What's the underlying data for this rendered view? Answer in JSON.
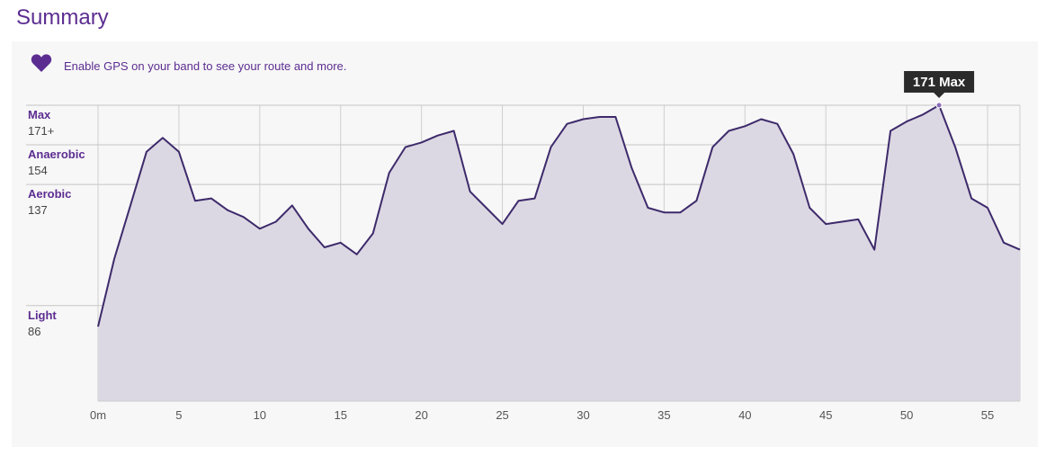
{
  "title": "Summary",
  "gps": {
    "icon": "heart-icon",
    "text": "Enable GPS on your band to see your route and more."
  },
  "colors": {
    "accent": "#5c2d91",
    "line": "#3d2a6b",
    "fill": "#dcd8e3",
    "tooltip_bg": "#2b2b2b"
  },
  "chart_data": {
    "type": "area",
    "x": [
      0,
      1,
      2,
      3,
      4,
      5,
      6,
      7,
      8,
      9,
      10,
      11,
      12,
      13,
      14,
      15,
      16,
      17,
      18,
      19,
      20,
      21,
      22,
      23,
      24,
      25,
      26,
      27,
      28,
      29,
      30,
      31,
      32,
      33,
      34,
      35,
      36,
      37,
      38,
      39,
      40,
      41,
      42,
      43,
      44,
      45,
      46,
      47,
      48,
      49,
      50,
      51,
      52,
      53,
      54,
      55,
      56,
      57
    ],
    "y": [
      80,
      109,
      132,
      155,
      161,
      155,
      134,
      135,
      130,
      127,
      122,
      125,
      132,
      122,
      114,
      116,
      111,
      120,
      146,
      157,
      159,
      162,
      164,
      138,
      131,
      124,
      134,
      135,
      157,
      167,
      169,
      170,
      170,
      148,
      131,
      129,
      129,
      134,
      157,
      164,
      166,
      169,
      167,
      154,
      131,
      124,
      125,
      126,
      113,
      164,
      168,
      171,
      175,
      157,
      135,
      131,
      116,
      113
    ],
    "xticks": [
      "0m",
      "5",
      "10",
      "15",
      "20",
      "25",
      "30",
      "35",
      "40",
      "45",
      "50",
      "55"
    ],
    "xtick_values": [
      0,
      5,
      10,
      15,
      20,
      25,
      30,
      35,
      40,
      45,
      50,
      55
    ],
    "xlim": [
      0,
      57
    ],
    "ylim": [
      48,
      175
    ],
    "zones": [
      {
        "name": "Max",
        "value": "171+",
        "level": 175
      },
      {
        "name": "Anaerobic",
        "value": "154",
        "level": 158
      },
      {
        "name": "Aerobic",
        "value": "137",
        "level": 141
      },
      {
        "name": "Light",
        "value": "86",
        "level": 89
      }
    ],
    "annotation": {
      "text": "171 Max",
      "x": 52
    }
  }
}
